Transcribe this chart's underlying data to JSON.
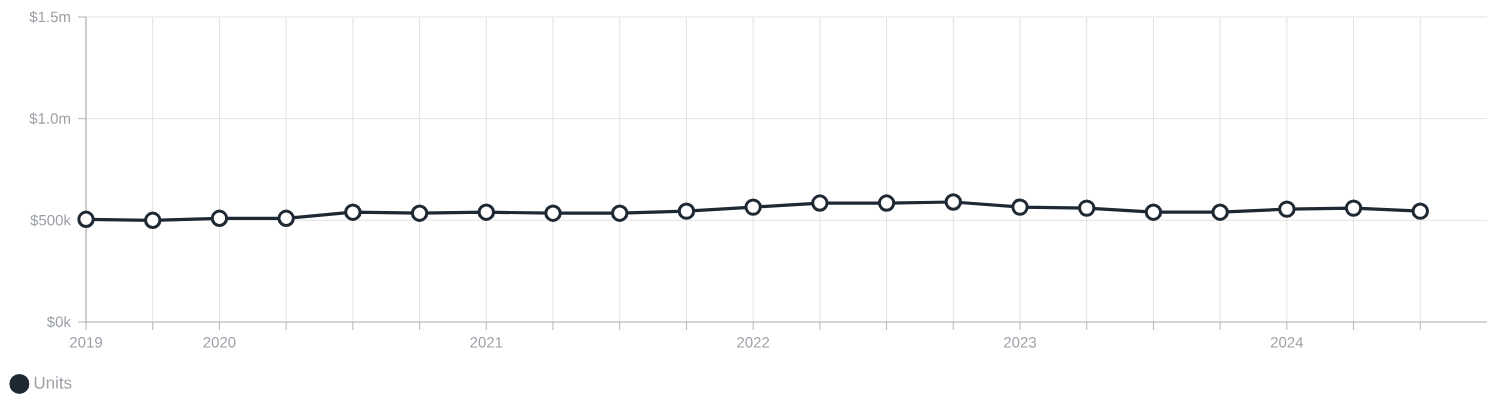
{
  "chart_data": {
    "type": "line",
    "categories": [
      "2019",
      null,
      "2020",
      null,
      null,
      null,
      "2021",
      null,
      null,
      null,
      "2022",
      null,
      null,
      null,
      "2023",
      null,
      null,
      null,
      "2024",
      null,
      null
    ],
    "series": [
      {
        "name": "Units",
        "color": "#1f2933",
        "values": [
          505000,
          500000,
          510000,
          510000,
          540000,
          535000,
          540000,
          535000,
          535000,
          545000,
          565000,
          585000,
          585000,
          590000,
          565000,
          560000,
          540000,
          540000,
          555000,
          560000,
          545000
        ]
      }
    ],
    "ylim": [
      0,
      1500000
    ],
    "yticks": [
      {
        "value": 0,
        "label": "$0k"
      },
      {
        "value": 500000,
        "label": "$500k"
      },
      {
        "value": 1000000,
        "label": "$1.0m"
      },
      {
        "value": 1500000,
        "label": "$1.5m"
      }
    ],
    "grid": true,
    "legend": "bottom left",
    "marker": "circle",
    "line_style": "solid"
  }
}
